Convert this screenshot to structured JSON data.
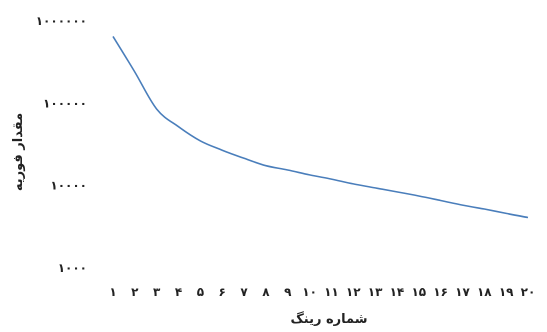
{
  "chart_data": {
    "type": "line",
    "xlabel": "شماره رینگ",
    "ylabel": "مقدار فوریه",
    "y_scale": "log",
    "ylim": [
      1000,
      1000000
    ],
    "y_ticks": [
      {
        "value": 1000,
        "label": "۱۰۰۰"
      },
      {
        "value": 10000,
        "label": "۱۰۰۰۰"
      },
      {
        "value": 100000,
        "label": "۱۰۰۰۰۰"
      },
      {
        "value": 1000000,
        "label": "۱۰۰۰۰۰۰"
      }
    ],
    "x_ticks": [
      "۱",
      "۲",
      "۳",
      "۴",
      "۵",
      "۶",
      "۷",
      "۸",
      "۹",
      "۱۰",
      "۱۱",
      "۱۲",
      "۱۳",
      "۱۴",
      "۱۵",
      "۱۶",
      "۱۷",
      "۱۸",
      "۱۹",
      "۲۰"
    ],
    "x": [
      1,
      2,
      3,
      4,
      5,
      6,
      7,
      8,
      9,
      10,
      11,
      12,
      13,
      14,
      15,
      16,
      17,
      18,
      19,
      20
    ],
    "series": [
      {
        "color": "#4a7ebb",
        "values": [
          650000,
          240000,
          85000,
          52000,
          35000,
          27000,
          21500,
          17500,
          15500,
          13500,
          12000,
          10500,
          9400,
          8400,
          7500,
          6600,
          5800,
          5200,
          4600,
          4100
        ]
      }
    ],
    "grid": false,
    "legend": "none"
  }
}
